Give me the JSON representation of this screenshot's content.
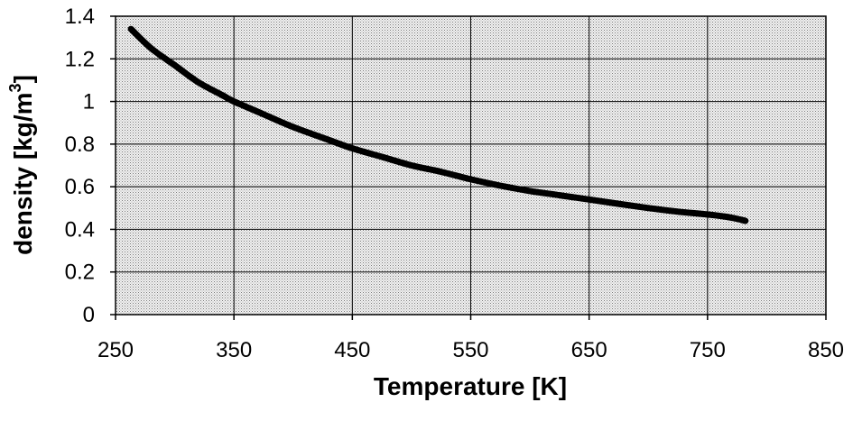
{
  "chart_data": {
    "type": "line",
    "title": "",
    "xlabel": "Temperature [K]",
    "ylabel": "density [kg/m",
    "ylabel_superscript": "3",
    "ylabel_suffix": "]",
    "xlim": [
      250,
      850
    ],
    "ylim": [
      0,
      1.4
    ],
    "x_ticks": [
      "250",
      "350",
      "450",
      "550",
      "650",
      "750",
      "850"
    ],
    "y_ticks": [
      "0",
      "0.2",
      "0.4",
      "0.6",
      "0.8",
      "1",
      "1.2",
      "1.4"
    ],
    "grid": true,
    "legend": "none",
    "background": "dotted-gray",
    "line_color": "#000000",
    "series": [
      {
        "x": [
          263,
          280,
          300,
          320,
          340,
          350,
          375,
          400,
          425,
          450,
          475,
          500,
          525,
          550,
          575,
          600,
          625,
          650,
          675,
          700,
          725,
          750,
          770,
          782
        ],
        "values": [
          1.34,
          1.25,
          1.17,
          1.09,
          1.03,
          1.0,
          0.94,
          0.88,
          0.83,
          0.78,
          0.74,
          0.7,
          0.67,
          0.635,
          0.605,
          0.58,
          0.56,
          0.54,
          0.52,
          0.5,
          0.483,
          0.47,
          0.455,
          0.44
        ]
      }
    ]
  }
}
